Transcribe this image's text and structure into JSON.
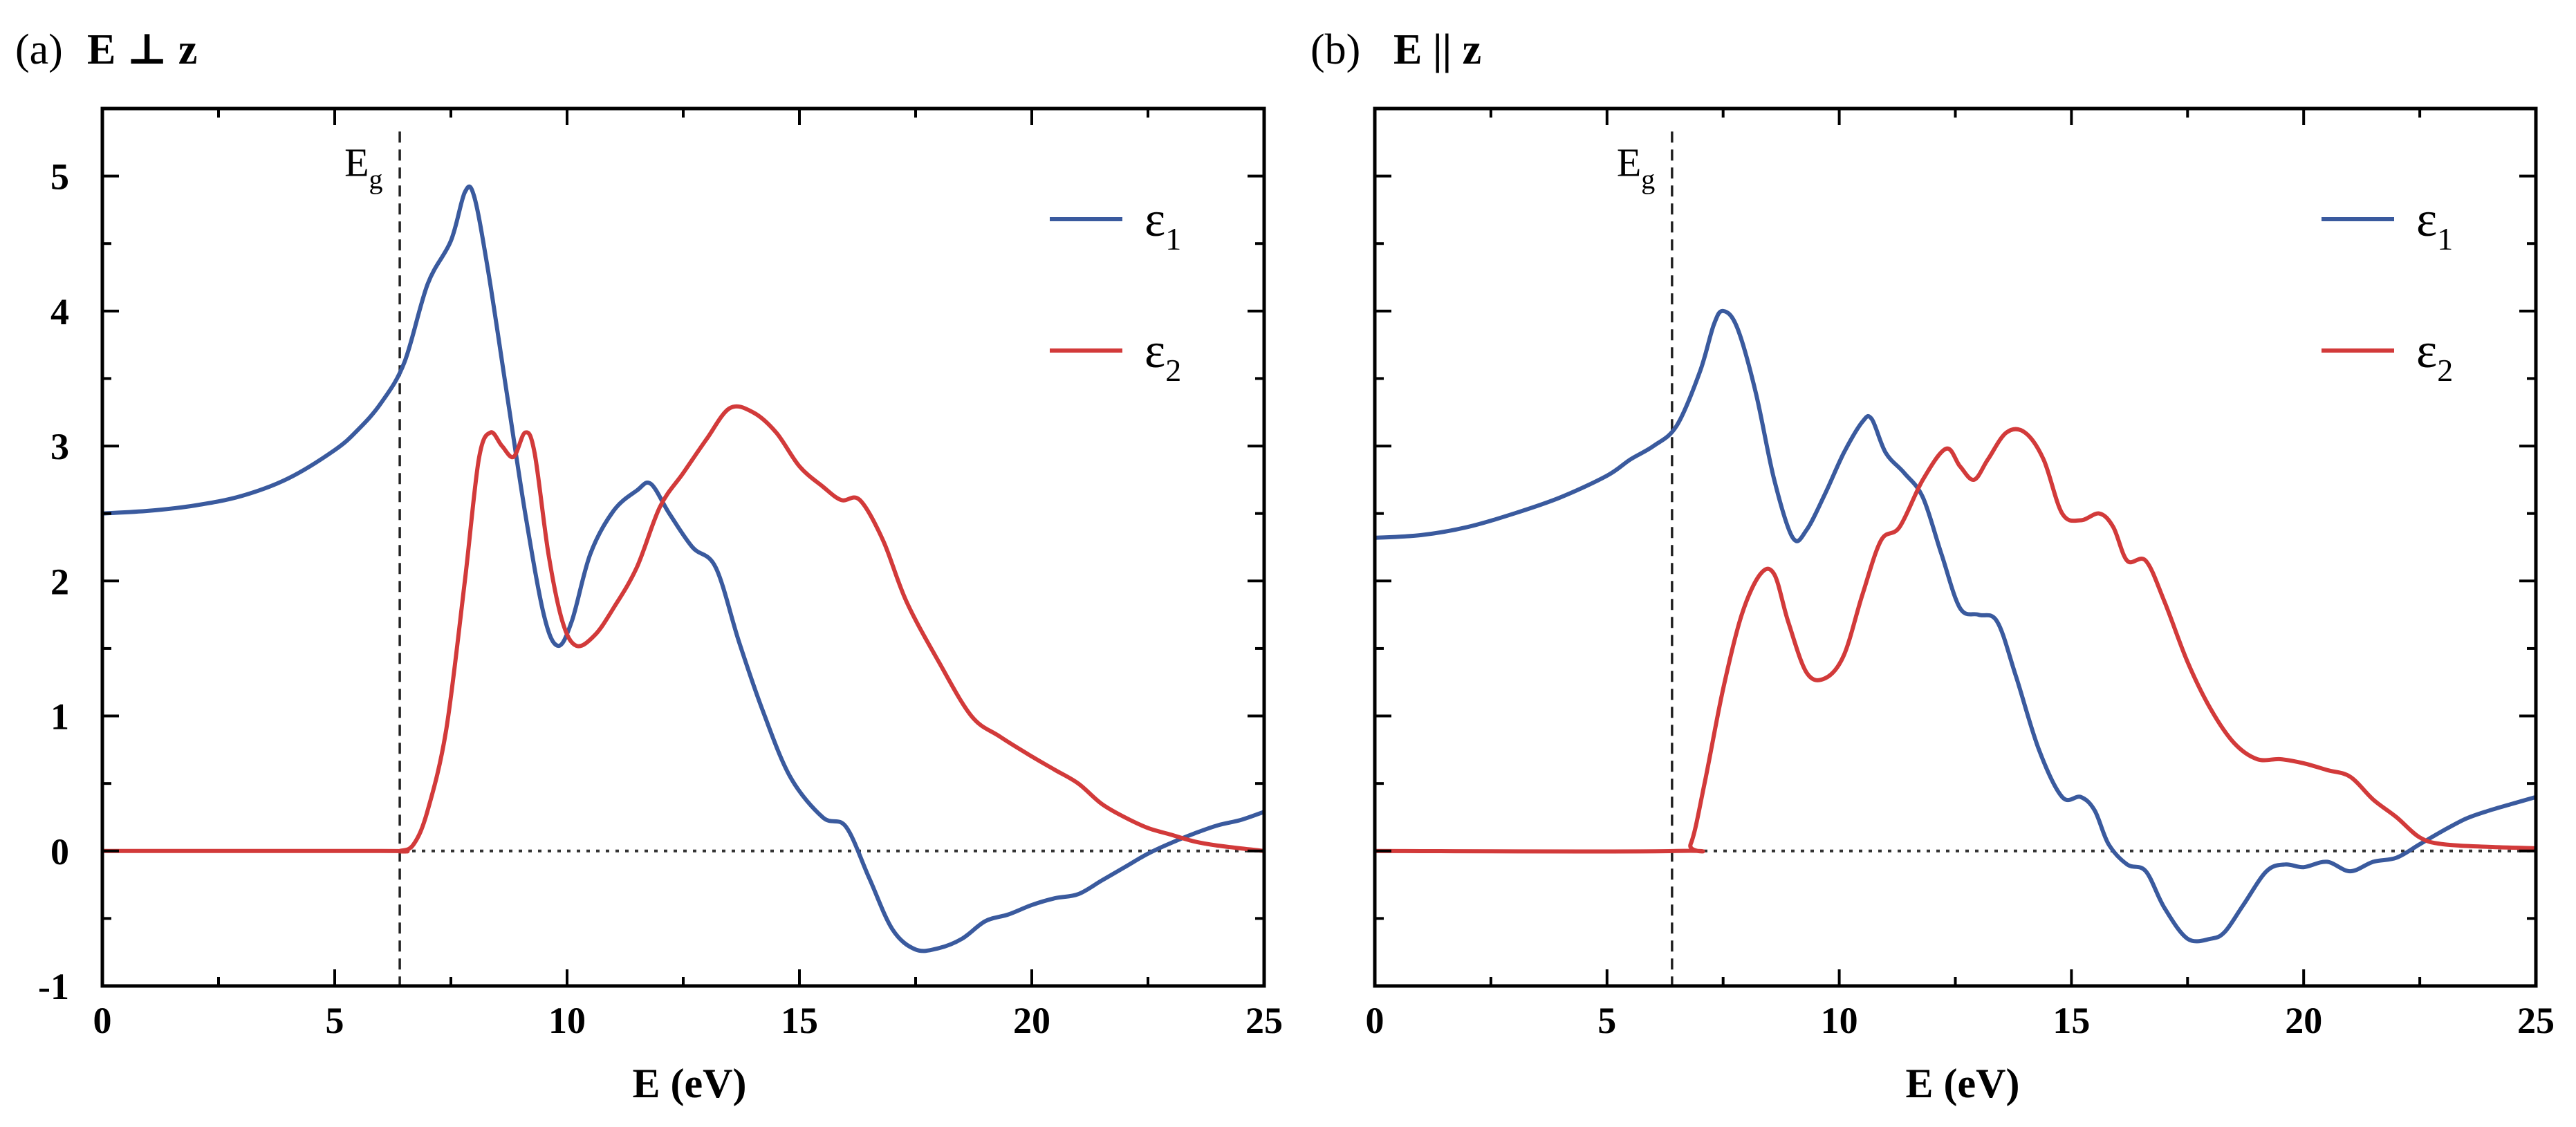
{
  "chart_data": [
    {
      "type": "line",
      "panel_label": "(a)",
      "title": "E ⊥ z",
      "xlabel": "E (eV)",
      "ylabel": "",
      "xlim": [
        0,
        25
      ],
      "ylim": [
        -1,
        5.5
      ],
      "xticks": [
        0,
        5,
        10,
        15,
        20,
        25
      ],
      "yticks": [
        -1,
        0,
        1,
        2,
        3,
        4,
        5
      ],
      "show_y_tick_labels": true,
      "legend_position": "top-right",
      "grid": false,
      "zero_line": true,
      "bandgap": {
        "x": 6.4,
        "label": "E",
        "subscript": "g"
      },
      "series": [
        {
          "name": "ε",
          "subscript": "1",
          "color": "#3a5a9e",
          "points": [
            [
              0,
              2.5
            ],
            [
              1,
              2.52
            ],
            [
              2,
              2.56
            ],
            [
              3,
              2.63
            ],
            [
              4,
              2.76
            ],
            [
              5,
              2.97
            ],
            [
              5.5,
              3.12
            ],
            [
              6,
              3.32
            ],
            [
              6.5,
              3.62
            ],
            [
              7,
              4.2
            ],
            [
              7.5,
              4.52
            ],
            [
              7.8,
              4.88
            ],
            [
              8,
              4.85
            ],
            [
              8.3,
              4.3
            ],
            [
              8.7,
              3.4
            ],
            [
              9.1,
              2.5
            ],
            [
              9.5,
              1.75
            ],
            [
              9.8,
              1.52
            ],
            [
              10.1,
              1.7
            ],
            [
              10.5,
              2.2
            ],
            [
              11,
              2.52
            ],
            [
              11.5,
              2.67
            ],
            [
              11.8,
              2.72
            ],
            [
              12.2,
              2.5
            ],
            [
              12.7,
              2.25
            ],
            [
              13.2,
              2.1
            ],
            [
              13.7,
              1.55
            ],
            [
              14.2,
              1.05
            ],
            [
              14.8,
              0.55
            ],
            [
              15.5,
              0.25
            ],
            [
              16,
              0.18
            ],
            [
              16.5,
              -0.2
            ],
            [
              17,
              -0.58
            ],
            [
              17.5,
              -0.73
            ],
            [
              18,
              -0.72
            ],
            [
              18.5,
              -0.65
            ],
            [
              19,
              -0.52
            ],
            [
              19.5,
              -0.47
            ],
            [
              20,
              -0.4
            ],
            [
              20.5,
              -0.35
            ],
            [
              21,
              -0.32
            ],
            [
              21.5,
              -0.22
            ],
            [
              22,
              -0.12
            ],
            [
              22.5,
              -0.02
            ],
            [
              23,
              0.06
            ],
            [
              23.5,
              0.13
            ],
            [
              24,
              0.19
            ],
            [
              24.5,
              0.23
            ],
            [
              25,
              0.29
            ]
          ]
        },
        {
          "name": "ε",
          "subscript": "2",
          "color": "#d23a3a",
          "points": [
            [
              0,
              0
            ],
            [
              6,
              0
            ],
            [
              6.4,
              0
            ],
            [
              6.7,
              0.05
            ],
            [
              7,
              0.3
            ],
            [
              7.4,
              0.9
            ],
            [
              7.8,
              2.0
            ],
            [
              8.1,
              2.9
            ],
            [
              8.35,
              3.1
            ],
            [
              8.6,
              3.0
            ],
            [
              8.85,
              2.92
            ],
            [
              9.1,
              3.1
            ],
            [
              9.3,
              2.95
            ],
            [
              9.6,
              2.2
            ],
            [
              9.9,
              1.7
            ],
            [
              10.2,
              1.52
            ],
            [
              10.6,
              1.6
            ],
            [
              11,
              1.8
            ],
            [
              11.5,
              2.1
            ],
            [
              12,
              2.55
            ],
            [
              12.5,
              2.8
            ],
            [
              13,
              3.05
            ],
            [
              13.5,
              3.28
            ],
            [
              14,
              3.25
            ],
            [
              14.5,
              3.1
            ],
            [
              15,
              2.85
            ],
            [
              15.5,
              2.7
            ],
            [
              15.9,
              2.6
            ],
            [
              16.3,
              2.6
            ],
            [
              16.8,
              2.3
            ],
            [
              17.3,
              1.85
            ],
            [
              18,
              1.4
            ],
            [
              18.7,
              1.0
            ],
            [
              19.3,
              0.85
            ],
            [
              20,
              0.7
            ],
            [
              20.5,
              0.6
            ],
            [
              21,
              0.5
            ],
            [
              21.5,
              0.35
            ],
            [
              22,
              0.25
            ],
            [
              22.5,
              0.17
            ],
            [
              23,
              0.12
            ],
            [
              23.5,
              0.07
            ],
            [
              24,
              0.04
            ],
            [
              25,
              0
            ]
          ]
        }
      ]
    },
    {
      "type": "line",
      "panel_label": "(b)",
      "title": "E || z",
      "xlabel": "E (eV)",
      "ylabel": "",
      "xlim": [
        0,
        25
      ],
      "ylim": [
        -1,
        5.5
      ],
      "xticks": [
        0,
        5,
        10,
        15,
        20,
        25
      ],
      "yticks": [
        -1,
        0,
        1,
        2,
        3,
        4,
        5
      ],
      "show_y_tick_labels": false,
      "legend_position": "top-right",
      "grid": false,
      "zero_line": true,
      "bandgap": {
        "x": 6.4,
        "label": "E",
        "subscript": "g"
      },
      "series": [
        {
          "name": "ε",
          "subscript": "1",
          "color": "#3a5a9e",
          "points": [
            [
              0,
              2.32
            ],
            [
              1,
              2.34
            ],
            [
              2,
              2.4
            ],
            [
              3,
              2.5
            ],
            [
              4,
              2.62
            ],
            [
              5,
              2.78
            ],
            [
              5.5,
              2.9
            ],
            [
              6,
              3.0
            ],
            [
              6.5,
              3.15
            ],
            [
              7,
              3.55
            ],
            [
              7.3,
              3.9
            ],
            [
              7.5,
              4.0
            ],
            [
              7.8,
              3.88
            ],
            [
              8.2,
              3.4
            ],
            [
              8.6,
              2.75
            ],
            [
              9,
              2.32
            ],
            [
              9.3,
              2.38
            ],
            [
              9.7,
              2.65
            ],
            [
              10.1,
              2.95
            ],
            [
              10.5,
              3.18
            ],
            [
              10.7,
              3.2
            ],
            [
              11,
              2.95
            ],
            [
              11.4,
              2.8
            ],
            [
              11.8,
              2.62
            ],
            [
              12.2,
              2.2
            ],
            [
              12.6,
              1.8
            ],
            [
              13,
              1.75
            ],
            [
              13.4,
              1.7
            ],
            [
              13.8,
              1.3
            ],
            [
              14.3,
              0.75
            ],
            [
              14.8,
              0.4
            ],
            [
              15.2,
              0.4
            ],
            [
              15.5,
              0.3
            ],
            [
              15.8,
              0.05
            ],
            [
              16.2,
              -0.1
            ],
            [
              16.6,
              -0.15
            ],
            [
              17,
              -0.42
            ],
            [
              17.5,
              -0.65
            ],
            [
              18,
              -0.65
            ],
            [
              18.3,
              -0.6
            ],
            [
              18.7,
              -0.4
            ],
            [
              19.2,
              -0.15
            ],
            [
              19.6,
              -0.1
            ],
            [
              20,
              -0.12
            ],
            [
              20.5,
              -0.08
            ],
            [
              21,
              -0.15
            ],
            [
              21.5,
              -0.08
            ],
            [
              22,
              -0.05
            ],
            [
              22.5,
              0.05
            ],
            [
              23,
              0.15
            ],
            [
              23.5,
              0.24
            ],
            [
              24,
              0.3
            ],
            [
              24.5,
              0.35
            ],
            [
              25,
              0.4
            ]
          ]
        },
        {
          "name": "ε",
          "subscript": "2",
          "color": "#d23a3a",
          "points": [
            [
              0,
              0
            ],
            [
              6.5,
              0
            ],
            [
              6.8,
              0.05
            ],
            [
              7.1,
              0.5
            ],
            [
              7.5,
              1.2
            ],
            [
              7.9,
              1.75
            ],
            [
              8.3,
              2.05
            ],
            [
              8.6,
              2.05
            ],
            [
              8.9,
              1.7
            ],
            [
              9.3,
              1.32
            ],
            [
              9.7,
              1.28
            ],
            [
              10.1,
              1.45
            ],
            [
              10.5,
              1.9
            ],
            [
              10.9,
              2.3
            ],
            [
              11.3,
              2.4
            ],
            [
              11.8,
              2.75
            ],
            [
              12.3,
              2.98
            ],
            [
              12.6,
              2.85
            ],
            [
              12.9,
              2.75
            ],
            [
              13.2,
              2.9
            ],
            [
              13.6,
              3.1
            ],
            [
              14,
              3.1
            ],
            [
              14.4,
              2.9
            ],
            [
              14.8,
              2.5
            ],
            [
              15.2,
              2.45
            ],
            [
              15.6,
              2.5
            ],
            [
              15.9,
              2.4
            ],
            [
              16.2,
              2.15
            ],
            [
              16.6,
              2.15
            ],
            [
              17,
              1.85
            ],
            [
              17.5,
              1.4
            ],
            [
              18,
              1.05
            ],
            [
              18.5,
              0.8
            ],
            [
              19,
              0.68
            ],
            [
              19.5,
              0.68
            ],
            [
              20,
              0.65
            ],
            [
              20.5,
              0.6
            ],
            [
              21,
              0.55
            ],
            [
              21.5,
              0.38
            ],
            [
              22,
              0.25
            ],
            [
              22.5,
              0.1
            ],
            [
              23,
              0.05
            ],
            [
              24,
              0.03
            ],
            [
              25,
              0.02
            ]
          ]
        }
      ]
    }
  ]
}
